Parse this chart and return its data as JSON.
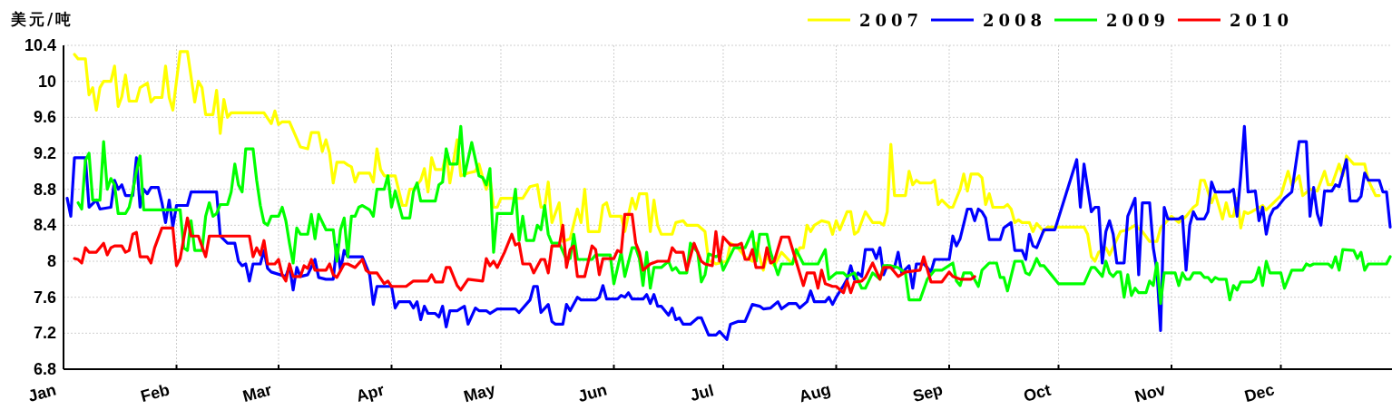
{
  "chart_data": {
    "type": "line",
    "ylabel": "美元/吨",
    "xlim": [
      "--01-01",
      "--12-31"
    ],
    "ylim": [
      6.8,
      10.4
    ],
    "xticks": [
      {
        "value": "--01-01",
        "label": "Jan"
      },
      {
        "value": "--02-01",
        "label": "Feb"
      },
      {
        "value": "--03-01",
        "label": "Mar"
      },
      {
        "value": "--04-01",
        "label": "Apr"
      },
      {
        "value": "--05-01",
        "label": "May"
      },
      {
        "value": "--06-01",
        "label": "Jun"
      },
      {
        "value": "--07-01",
        "label": "Jul"
      },
      {
        "value": "--08-01",
        "label": "Aug"
      },
      {
        "value": "--09-01",
        "label": "Sep"
      },
      {
        "value": "--10-01",
        "label": "Oct"
      },
      {
        "value": "--11-01",
        "label": "Nov"
      },
      {
        "value": "--12-01",
        "label": "Dec"
      }
    ],
    "yticks": [
      6.8,
      7.2,
      7.6,
      8,
      8.4,
      8.8,
      9.2,
      9.6,
      10,
      10.4
    ],
    "grid": true,
    "legend": "top right",
    "series": [
      {
        "name": "2007",
        "color": "#ffff00",
        "x": [
          "--01-04",
          "--01-05",
          "--01-07",
          "--01-08",
          "--01-09",
          "--01-10",
          "--01-11",
          "--01-12",
          "--01-14",
          "--01-15",
          "--01-16",
          "--01-17",
          "--01-18",
          "--01-19",
          "--01-21",
          "--01-22",
          "--01-24",
          "--01-25",
          "--01-26",
          "--01-28",
          "--01-29",
          "--01-30",
          "--01-31",
          "--02-02",
          "--02-04",
          "--02-06",
          "--02-07",
          "--02-08",
          "--02-09",
          "--02-11",
          "--02-12",
          "--02-13",
          "--02-14",
          "--02-15",
          "--02-16",
          "--02-25",
          "--02-27",
          "--02-28",
          "--03-01",
          "--03-02",
          "--03-04",
          "--03-07",
          "--03-09",
          "--03-10",
          "--03-12",
          "--03-13",
          "--03-14",
          "--03-15",
          "--03-16",
          "--03-17",
          "--03-19",
          "--03-20",
          "--03-21",
          "--03-22",
          "--03-23",
          "--03-26",
          "--03-27",
          "--03-28",
          "--03-29",
          "--03-30",
          "--04-02",
          "--04-04",
          "--04-05",
          "--04-06",
          "--04-07",
          "--04-09",
          "--04-10",
          "--04-11",
          "--04-12",
          "--04-13",
          "--04-15",
          "--04-16",
          "--04-17",
          "--04-19",
          "--04-20",
          "--04-22",
          "--04-24",
          "--04-25",
          "--04-26",
          "--04-27",
          "--04-28",
          "--04-29",
          "--04-30",
          "--05-01",
          "--05-07",
          "--05-09",
          "--05-11",
          "--05-12",
          "--05-13",
          "--05-14",
          "--05-15",
          "--05-17",
          "--05-18",
          "--05-20",
          "--05-22",
          "--05-23",
          "--05-24",
          "--05-25",
          "--05-28",
          "--05-29",
          "--05-30",
          "--05-31",
          "--06-03",
          "--06-04",
          "--06-06",
          "--06-07",
          "--06-08",
          "--06-10",
          "--06-11",
          "--06-12",
          "--06-13",
          "--06-14",
          "--06-17",
          "--06-18",
          "--06-20",
          "--06-21",
          "--06-24",
          "--06-26",
          "--06-27",
          "--06-28",
          "--06-29",
          "--07-02",
          "--07-03",
          "--07-05",
          "--07-07",
          "--07-09",
          "--07-10",
          "--07-12",
          "--07-13",
          "--07-15",
          "--07-17",
          "--07-20",
          "--07-22",
          "--07-23",
          "--07-24",
          "--07-25",
          "--07-26",
          "--07-28",
          "--07-30",
          "--07-31",
          "--08-01",
          "--08-02",
          "--08-04",
          "--08-05",
          "--08-06",
          "--08-07",
          "--08-09",
          "--08-11",
          "--08-13",
          "--08-14",
          "--08-15",
          "--08-16",
          "--08-17",
          "--08-20",
          "--08-21",
          "--08-22",
          "--08-23",
          "--08-24",
          "--08-27",
          "--08-28",
          "--08-29",
          "--08-30",
          "--09-01",
          "--09-02",
          "--09-04",
          "--09-05",
          "--09-06",
          "--09-07",
          "--09-09",
          "--09-10",
          "--09-11",
          "--09-12",
          "--09-13",
          "--09-16",
          "--09-17",
          "--09-18",
          "--09-19",
          "--09-20",
          "--09-21",
          "--09-23",
          "--09-24",
          "--09-25",
          "--09-27",
          "--09-28",
          "--10-08",
          "--10-09",
          "--10-10",
          "--10-11",
          "--10-12",
          "--10-14",
          "--10-15",
          "--10-18",
          "--10-20",
          "--10-22",
          "--10-24",
          "--10-26",
          "--10-28",
          "--10-29",
          "--11-01",
          "--11-03",
          "--11-05",
          "--11-07",
          "--11-08",
          "--11-09",
          "--11-10",
          "--11-12",
          "--11-13",
          "--11-15",
          "--11-16",
          "--11-17",
          "--11-18",
          "--11-19",
          "--11-20",
          "--11-21",
          "--11-22",
          "--11-23",
          "--11-26",
          "--11-27",
          "--11-29",
          "--12-01",
          "--12-03",
          "--12-04",
          "--12-06",
          "--12-07",
          "--12-09",
          "--12-11",
          "--12-13",
          "--12-14",
          "--12-15",
          "--12-17",
          "--12-18",
          "--12-19",
          "--12-21",
          "--12-24",
          "--12-25",
          "--12-27",
          "--12-28"
        ],
        "values": [
          10.3,
          10.25,
          10.25,
          9.85,
          9.93,
          9.68,
          9.93,
          10.0,
          10.0,
          10.17,
          9.72,
          9.83,
          10.07,
          9.78,
          9.78,
          9.93,
          9.98,
          9.77,
          9.82,
          9.82,
          10.17,
          9.82,
          9.68,
          10.33,
          10.33,
          9.77,
          10.0,
          9.93,
          9.63,
          9.63,
          9.9,
          9.42,
          9.8,
          9.6,
          9.65,
          9.65,
          9.53,
          9.67,
          9.52,
          9.55,
          9.55,
          9.27,
          9.25,
          9.43,
          9.43,
          9.22,
          9.35,
          9.2,
          8.87,
          9.1,
          9.1,
          9.07,
          9.05,
          8.88,
          8.98,
          8.98,
          8.88,
          9.25,
          9.02,
          8.95,
          8.95,
          8.62,
          8.62,
          8.8,
          8.8,
          8.9,
          9.03,
          8.77,
          9.15,
          9.02,
          9.02,
          9.2,
          8.87,
          9.35,
          8.95,
          8.98,
          9.0,
          9.08,
          8.93,
          8.8,
          8.93,
          8.6,
          8.6,
          8.7,
          8.7,
          8.83,
          8.85,
          8.6,
          8.6,
          8.88,
          8.43,
          8.65,
          8.22,
          8.25,
          8.58,
          8.43,
          8.8,
          8.33,
          8.33,
          8.62,
          8.65,
          8.5,
          8.5,
          8.33,
          8.7,
          8.58,
          8.75,
          8.75,
          8.33,
          8.68,
          8.4,
          8.3,
          8.3,
          8.43,
          8.45,
          8.4,
          8.4,
          8.33,
          8.0,
          8.0,
          7.97,
          8.0,
          8.2,
          8.15,
          8.05,
          8.0,
          8.2,
          7.9,
          8.05,
          7.95,
          8.1,
          7.97,
          8.15,
          8.15,
          8.4,
          8.33,
          8.4,
          8.45,
          8.43,
          8.3,
          8.45,
          8.35,
          8.55,
          8.55,
          8.3,
          8.33,
          8.55,
          8.43,
          8.43,
          8.4,
          8.55,
          9.3,
          8.73,
          8.73,
          9.0,
          8.85,
          8.9,
          8.87,
          8.87,
          8.9,
          8.63,
          8.68,
          8.6,
          8.6,
          8.8,
          8.97,
          8.78,
          8.97,
          8.97,
          8.93,
          8.63,
          8.75,
          8.6,
          8.6,
          8.63,
          8.58,
          8.43,
          8.46,
          8.43,
          8.43,
          8.33,
          8.42,
          8.33,
          8.38,
          8.38,
          8.3,
          8.05,
          8.0,
          8.1,
          8.15,
          8.07,
          8.33,
          8.35,
          8.4,
          8.33,
          8.22,
          8.22,
          8.37,
          8.5,
          8.43,
          8.5,
          8.6,
          8.63,
          8.9,
          8.9,
          8.65,
          8.75,
          8.47,
          8.65,
          8.5,
          8.5,
          8.7,
          8.37,
          8.55,
          8.53,
          8.55,
          8.62,
          8.57,
          8.65,
          8.73,
          9.0,
          8.85,
          8.95,
          8.73,
          8.8,
          8.78,
          9.0,
          8.85,
          8.85,
          9.08,
          8.95,
          9.17,
          9.08,
          9.08,
          8.9,
          8.73,
          8.73
        ]
      },
      {
        "name": "2008",
        "color": "#0000ff",
        "x": [
          "--01-02",
          "--01-03",
          "--01-04",
          "--01-07",
          "--01-08",
          "--01-10",
          "--01-11",
          "--01-14",
          "--01-15",
          "--01-16",
          "--01-17",
          "--01-18",
          "--01-20",
          "--01-21",
          "--01-22",
          "--01-23",
          "--01-24",
          "--01-25",
          "--01-27",
          "--01-28",
          "--01-29",
          "--01-30",
          "--01-31",
          "--02-01",
          "--02-04",
          "--02-05",
          "--02-12",
          "--02-13",
          "--02-15",
          "--02-17",
          "--02-18",
          "--02-19",
          "--02-20",
          "--02-21",
          "--02-22",
          "--02-24",
          "--02-25",
          "--02-26",
          "--02-27",
          "--03-03",
          "--03-04",
          "--03-05",
          "--03-06",
          "--03-07",
          "--03-09",
          "--03-11",
          "--03-12",
          "--03-14",
          "--03-16",
          "--03-17",
          "--03-18",
          "--03-19",
          "--03-20",
          "--03-24",
          "--03-26",
          "--03-27",
          "--03-28",
          "--04-01",
          "--04-02",
          "--04-03",
          "--04-06",
          "--04-07",
          "--04-08",
          "--04-09",
          "--04-10",
          "--04-11",
          "--04-13",
          "--04-14",
          "--04-15",
          "--04-16",
          "--04-17",
          "--04-19",
          "--04-21",
          "--04-22",
          "--04-24",
          "--04-25",
          "--04-27",
          "--04-28",
          "--04-30",
          "--05-05",
          "--05-06",
          "--05-09",
          "--05-10",
          "--05-11",
          "--05-12",
          "--05-14",
          "--05-15",
          "--05-16",
          "--05-18",
          "--05-19",
          "--05-20",
          "--05-22",
          "--05-23",
          "--05-27",
          "--05-28",
          "--05-29",
          "--05-30",
          "--06-02",
          "--06-03",
          "--06-04",
          "--06-05",
          "--06-06",
          "--06-09",
          "--06-10",
          "--06-11",
          "--06-12",
          "--06-13",
          "--06-14",
          "--06-16",
          "--06-17",
          "--06-18",
          "--06-19",
          "--06-20",
          "--06-22",
          "--06-24",
          "--06-25",
          "--06-27",
          "--06-29",
          "--06-30",
          "--07-02",
          "--07-03",
          "--07-05",
          "--07-07",
          "--07-09",
          "--07-11",
          "--07-12",
          "--07-14",
          "--07-16",
          "--07-17",
          "--07-19",
          "--07-21",
          "--07-22",
          "--07-24",
          "--07-25",
          "--07-26",
          "--07-29",
          "--07-30",
          "--07-31",
          "--08-01",
          "--08-03",
          "--08-04",
          "--08-05",
          "--08-06",
          "--08-07",
          "--08-08",
          "--08-09",
          "--08-11",
          "--08-12",
          "--08-13",
          "--08-14",
          "--08-15",
          "--08-17",
          "--08-18",
          "--08-19",
          "--08-21",
          "--08-22",
          "--08-23",
          "--08-25",
          "--08-26",
          "--08-27",
          "--08-28",
          "--09-01",
          "--09-02",
          "--09-03",
          "--09-04",
          "--09-06",
          "--09-07",
          "--09-08",
          "--09-09",
          "--09-10",
          "--09-11",
          "--09-12",
          "--09-15",
          "--09-16",
          "--09-18",
          "--09-19",
          "--09-21",
          "--09-22",
          "--09-23",
          "--09-24",
          "--09-25",
          "--09-27",
          "--09-30",
          "--10-06",
          "--10-07",
          "--10-08",
          "--10-10",
          "--10-11",
          "--10-12",
          "--10-13",
          "--10-14",
          "--10-15",
          "--10-16",
          "--10-17",
          "--10-19",
          "--10-20",
          "--10-22",
          "--10-23",
          "--10-24",
          "--10-26",
          "--10-27",
          "--10-28",
          "--10-29",
          "--10-30",
          "--10-31",
          "--11-03",
          "--11-04",
          "--11-05",
          "--11-06",
          "--11-07",
          "--11-08",
          "--11-10",
          "--11-11",
          "--11-12",
          "--11-13",
          "--11-17",
          "--11-18",
          "--11-19",
          "--11-20",
          "--11-21",
          "--11-22",
          "--11-24",
          "--11-25",
          "--11-26",
          "--11-27",
          "--11-28",
          "--11-29",
          "--11-30",
          "--12-02",
          "--12-04",
          "--12-06",
          "--12-08",
          "--12-09",
          "--12-10",
          "--12-11",
          "--12-12",
          "--12-13",
          "--12-15",
          "--12-16",
          "--12-17",
          "--12-19",
          "--12-20",
          "--12-22",
          "--12-23",
          "--12-24",
          "--12-25",
          "--12-28",
          "--12-29",
          "--12-30",
          "--12-31"
        ],
        "values": [
          8.7,
          8.5,
          9.15,
          9.15,
          8.6,
          8.68,
          8.58,
          8.6,
          8.9,
          8.8,
          8.85,
          8.73,
          8.73,
          9.15,
          8.6,
          8.8,
          8.75,
          8.82,
          8.82,
          8.65,
          8.43,
          8.68,
          8.38,
          8.62,
          8.62,
          8.77,
          8.77,
          8.28,
          8.2,
          8.2,
          8.0,
          7.95,
          7.97,
          7.78,
          7.97,
          7.97,
          8.12,
          7.92,
          7.88,
          7.83,
          7.95,
          7.68,
          7.93,
          7.83,
          7.85,
          8.02,
          7.82,
          7.8,
          7.8,
          8.18,
          7.9,
          8.12,
          8.05,
          8.05,
          7.85,
          7.52,
          7.72,
          7.72,
          7.48,
          7.55,
          7.55,
          7.48,
          7.55,
          7.35,
          7.5,
          7.42,
          7.42,
          7.38,
          7.5,
          7.27,
          7.45,
          7.45,
          7.5,
          7.3,
          7.48,
          7.45,
          7.45,
          7.42,
          7.47,
          7.47,
          7.43,
          7.57,
          7.72,
          7.72,
          7.43,
          7.52,
          7.33,
          7.3,
          7.3,
          7.52,
          7.45,
          7.6,
          7.57,
          7.57,
          7.6,
          7.73,
          7.58,
          7.58,
          7.62,
          7.6,
          7.65,
          7.58,
          7.58,
          7.63,
          7.53,
          7.63,
          7.5,
          7.5,
          7.4,
          7.48,
          7.35,
          7.37,
          7.3,
          7.3,
          7.37,
          7.37,
          7.18,
          7.18,
          7.22,
          7.13,
          7.3,
          7.33,
          7.33,
          7.52,
          7.5,
          7.47,
          7.48,
          7.55,
          7.47,
          7.53,
          7.53,
          7.48,
          7.55,
          7.67,
          7.55,
          7.55,
          7.6,
          7.52,
          7.6,
          7.73,
          7.8,
          7.95,
          7.8,
          7.87,
          7.83,
          8.13,
          8.13,
          8.03,
          8.15,
          7.85,
          7.95,
          7.93,
          8.1,
          7.87,
          7.95,
          7.7,
          7.97,
          7.97,
          7.93,
          7.88,
          8.02,
          8.02,
          8.28,
          8.17,
          8.25,
          8.58,
          8.58,
          8.45,
          8.58,
          8.55,
          8.48,
          8.24,
          8.24,
          8.37,
          8.43,
          8.12,
          8.12,
          8.02,
          8.3,
          8.17,
          8.15,
          8.35,
          8.35,
          9.13,
          8.6,
          9.08,
          8.55,
          8.6,
          8.6,
          7.98,
          8.33,
          8.45,
          8.3,
          7.98,
          7.98,
          8.5,
          8.7,
          7.85,
          8.65,
          8.65,
          8.15,
          7.9,
          7.23,
          8.6,
          8.47,
          8.47,
          8.5,
          7.9,
          8.4,
          8.55,
          8.47,
          8.47,
          8.55,
          8.88,
          8.77,
          8.77,
          8.8,
          8.5,
          8.95,
          9.5,
          8.77,
          8.78,
          8.45,
          8.6,
          8.3,
          8.5,
          8.58,
          8.6,
          8.7,
          8.77,
          9.33,
          9.33,
          8.5,
          8.82,
          8.53,
          8.4,
          8.78,
          8.78,
          8.85,
          8.83,
          9.13,
          8.67,
          8.67,
          8.72,
          8.98,
          8.9,
          8.9,
          8.77,
          8.77,
          8.38
        ]
      },
      {
        "name": "2009",
        "color": "#00ff00",
        "x": [
          "--01-05",
          "--01-06",
          "--01-07",
          "--01-08",
          "--01-09",
          "--01-11",
          "--01-12",
          "--01-13",
          "--01-14",
          "--01-15",
          "--01-16",
          "--01-18",
          "--01-19",
          "--01-20",
          "--01-21",
          "--01-22",
          "--01-23",
          "--02-02",
          "--02-03",
          "--02-04",
          "--02-05",
          "--02-06",
          "--02-08",
          "--02-09",
          "--02-10",
          "--02-11",
          "--02-12",
          "--02-13",
          "--02-15",
          "--02-16",
          "--02-17",
          "--02-18",
          "--02-19",
          "--02-20",
          "--02-22",
          "--02-23",
          "--02-24",
          "--02-25",
          "--02-26",
          "--02-27",
          "--03-01",
          "--03-02",
          "--03-03",
          "--03-04",
          "--03-05",
          "--03-06",
          "--03-07",
          "--03-09",
          "--03-10",
          "--03-11",
          "--03-12",
          "--03-14",
          "--03-16",
          "--03-17",
          "--03-18",
          "--03-19",
          "--03-20",
          "--03-21",
          "--03-22",
          "--03-23",
          "--03-24",
          "--03-26",
          "--03-27",
          "--03-28",
          "--03-30",
          "--03-31",
          "--04-01",
          "--04-02",
          "--04-04",
          "--04-06",
          "--04-07",
          "--04-08",
          "--04-09",
          "--04-13",
          "--04-14",
          "--04-15",
          "--04-16",
          "--04-17",
          "--04-19",
          "--04-20",
          "--04-21",
          "--04-23",
          "--04-25",
          "--04-26",
          "--04-27",
          "--04-28",
          "--04-29",
          "--04-30",
          "--05-04",
          "--05-05",
          "--05-06",
          "--05-07",
          "--05-08",
          "--05-10",
          "--05-11",
          "--05-12",
          "--05-13",
          "--05-14",
          "--05-15",
          "--05-17",
          "--05-19",
          "--05-20",
          "--05-21",
          "--05-22",
          "--05-26",
          "--05-27",
          "--05-31",
          "--06-01",
          "--06-03",
          "--06-04",
          "--06-06",
          "--06-07",
          "--06-08",
          "--06-09",
          "--06-10",
          "--06-11",
          "--06-12",
          "--06-14",
          "--06-16",
          "--06-17",
          "--06-18",
          "--06-19",
          "--06-21",
          "--06-22",
          "--06-24",
          "--06-25",
          "--06-26",
          "--06-27",
          "--06-29",
          "--06-30",
          "--07-01",
          "--07-04",
          "--07-05",
          "--07-07",
          "--07-09",
          "--07-10",
          "--07-11",
          "--07-13",
          "--07-14",
          "--07-16",
          "--07-17",
          "--07-20",
          "--07-21",
          "--07-23",
          "--07-27",
          "--07-29",
          "--07-30",
          "--08-01",
          "--08-03",
          "--08-04",
          "--08-06",
          "--08-08",
          "--08-09",
          "--08-11",
          "--08-13",
          "--08-14",
          "--08-16",
          "--08-18",
          "--08-20",
          "--08-21",
          "--08-24",
          "--08-26",
          "--08-28",
          "--08-30",
          "--09-02",
          "--09-03",
          "--09-04",
          "--09-05",
          "--09-07",
          "--09-09",
          "--09-10",
          "--09-12",
          "--09-14",
          "--09-15",
          "--09-16",
          "--09-17",
          "--09-19",
          "--09-21",
          "--09-22",
          "--09-23",
          "--09-24",
          "--09-25",
          "--09-26",
          "--09-27",
          "--09-29",
          "--10-01",
          "--10-08",
          "--10-10",
          "--10-11",
          "--10-13",
          "--10-14",
          "--10-15",
          "--10-16",
          "--10-17",
          "--10-18",
          "--10-19",
          "--10-20",
          "--10-21",
          "--10-22",
          "--10-23",
          "--10-25",
          "--10-26",
          "--10-27",
          "--10-28",
          "--10-29",
          "--10-30",
          "--11-02",
          "--11-03",
          "--11-04",
          "--11-05",
          "--11-06",
          "--11-07",
          "--11-09",
          "--11-10",
          "--11-11",
          "--11-12",
          "--11-13",
          "--11-14",
          "--11-16",
          "--11-17",
          "--11-18",
          "--11-19",
          "--11-20",
          "--11-23",
          "--11-24",
          "--11-25",
          "--11-26",
          "--11-27",
          "--11-28",
          "--12-01",
          "--12-02",
          "--12-03",
          "--12-04",
          "--12-07",
          "--12-08",
          "--12-09",
          "--12-10",
          "--12-14",
          "--12-15",
          "--12-16",
          "--12-17",
          "--12-18",
          "--12-21",
          "--12-22",
          "--12-23",
          "--12-24",
          "--12-25",
          "--12-30",
          "--12-31"
        ],
        "values": [
          8.65,
          8.58,
          9.12,
          9.2,
          8.68,
          8.68,
          9.33,
          8.8,
          8.92,
          8.85,
          8.53,
          8.53,
          8.6,
          8.78,
          9.0,
          9.17,
          8.57,
          8.57,
          8.15,
          8.12,
          8.45,
          8.12,
          8.12,
          8.5,
          8.65,
          8.5,
          8.53,
          8.63,
          8.63,
          8.77,
          9.08,
          8.85,
          8.77,
          9.25,
          9.25,
          8.9,
          8.62,
          8.43,
          8.4,
          8.5,
          8.5,
          8.6,
          8.45,
          8.2,
          7.98,
          8.37,
          8.3,
          8.3,
          8.52,
          8.25,
          8.52,
          8.35,
          8.35,
          8.0,
          8.35,
          8.48,
          8.05,
          8.5,
          8.5,
          8.6,
          8.62,
          8.57,
          8.5,
          8.8,
          8.8,
          8.95,
          8.6,
          8.78,
          8.48,
          8.48,
          8.77,
          8.87,
          8.67,
          8.67,
          8.85,
          8.88,
          9.25,
          9.08,
          9.08,
          9.5,
          8.95,
          9.32,
          8.95,
          8.93,
          8.85,
          9.03,
          8.1,
          8.53,
          8.53,
          8.8,
          8.23,
          8.5,
          8.23,
          8.23,
          8.4,
          8.35,
          8.62,
          8.3,
          8.2,
          8.2,
          8.02,
          8.03,
          8.3,
          8.02,
          8.02,
          8.07,
          8.07,
          7.75,
          8.1,
          7.83,
          8.15,
          8.15,
          8.03,
          7.73,
          8.1,
          7.7,
          7.93,
          7.93,
          8.0,
          7.9,
          7.93,
          7.87,
          7.87,
          8.2,
          8.1,
          7.77,
          7.85,
          8.08,
          8.05,
          8.07,
          7.9,
          8.15,
          8.15,
          8.15,
          8.33,
          8.0,
          8.3,
          8.3,
          8.1,
          7.85,
          7.97,
          7.97,
          8.13,
          7.97,
          7.97,
          8.13,
          7.8,
          7.87,
          7.87,
          7.83,
          7.87,
          7.7,
          7.7,
          7.87,
          7.8,
          7.95,
          7.95,
          7.93,
          7.87,
          7.57,
          7.57,
          7.8,
          7.9,
          7.9,
          7.98,
          7.78,
          7.73,
          7.87,
          7.87,
          7.72,
          7.9,
          7.98,
          7.98,
          7.82,
          7.82,
          7.67,
          8.0,
          8.0,
          7.87,
          7.85,
          7.93,
          8.03,
          7.95,
          7.95,
          7.85,
          7.75,
          7.75,
          7.93,
          7.93,
          7.83,
          8.0,
          7.87,
          7.83,
          7.88,
          7.88,
          7.6,
          7.85,
          7.62,
          7.7,
          7.65,
          7.65,
          7.78,
          7.73,
          7.98,
          7.53,
          7.87,
          7.87,
          7.73,
          7.87,
          7.8,
          7.8,
          7.87,
          7.87,
          7.82,
          7.82,
          7.77,
          7.82,
          7.8,
          7.8,
          7.57,
          7.73,
          7.68,
          7.77,
          7.77,
          7.8,
          7.93,
          7.73,
          8.0,
          7.87,
          7.87,
          7.7,
          7.8,
          7.9,
          7.9,
          7.97,
          7.95,
          7.97,
          7.97,
          7.93,
          8.05,
          7.9,
          8.13,
          8.12,
          8.03,
          8.1,
          7.9,
          7.97,
          7.97,
          8.05
        ]
      },
      {
        "name": "2010",
        "color": "#ff0000",
        "x": [
          "--01-04",
          "--01-05",
          "--01-06",
          "--01-07",
          "--01-08",
          "--01-10",
          "--01-12",
          "--01-13",
          "--01-14",
          "--01-15",
          "--01-17",
          "--01-18",
          "--01-19",
          "--01-20",
          "--01-21",
          "--01-22",
          "--01-24",
          "--01-25",
          "--01-26",
          "--01-28",
          "--01-31",
          "--02-01",
          "--02-02",
          "--02-04",
          "--02-05",
          "--02-07",
          "--02-09",
          "--02-10",
          "--02-21",
          "--02-22",
          "--02-23",
          "--02-24",
          "--02-25",
          "--02-26",
          "--02-28",
          "--03-01",
          "--03-02",
          "--03-03",
          "--03-04",
          "--03-05",
          "--03-07",
          "--03-08",
          "--03-09",
          "--03-10",
          "--03-11",
          "--03-14",
          "--03-15",
          "--03-16",
          "--03-17",
          "--03-19",
          "--03-20",
          "--03-22",
          "--03-24",
          "--03-25",
          "--03-26",
          "--03-28",
          "--03-30",
          "--03-31",
          "--04-01",
          "--04-05",
          "--04-07",
          "--04-11",
          "--04-12",
          "--04-13",
          "--04-15",
          "--04-16",
          "--04-17",
          "--04-19",
          "--04-20",
          "--04-22",
          "--04-26",
          "--04-27",
          "--04-28",
          "--04-29",
          "--04-30",
          "--05-02",
          "--05-04",
          "--05-05",
          "--05-06",
          "--05-07",
          "--05-09",
          "--05-10",
          "--05-12",
          "--05-13",
          "--05-14",
          "--05-15",
          "--05-17",
          "--05-18",
          "--05-19",
          "--05-20",
          "--05-21",
          "--05-22",
          "--05-24",
          "--05-26",
          "--05-27",
          "--05-28",
          "--05-29",
          "--06-01",
          "--06-02",
          "--06-03",
          "--06-04",
          "--06-06",
          "--06-07",
          "--06-08",
          "--06-09",
          "--06-11",
          "--06-13",
          "--06-16",
          "--06-17",
          "--06-18",
          "--06-20",
          "--06-21",
          "--06-23",
          "--06-25",
          "--06-26",
          "--06-28",
          "--06-29",
          "--06-30",
          "--07-01",
          "--07-03",
          "--07-05",
          "--07-06",
          "--07-07",
          "--07-08",
          "--07-09",
          "--07-10",
          "--07-12",
          "--07-13",
          "--07-14",
          "--07-15",
          "--07-17",
          "--07-19",
          "--07-21",
          "--07-23",
          "--07-24",
          "--07-26",
          "--07-27",
          "--07-28",
          "--07-29",
          "--07-31",
          "--08-01",
          "--08-03",
          "--08-04",
          "--08-05",
          "--08-06",
          "--08-08",
          "--08-09",
          "--08-11",
          "--08-13",
          "--08-14",
          "--08-16",
          "--08-18",
          "--08-20",
          "--08-24",
          "--08-25",
          "--08-27",
          "--08-30",
          "--09-01",
          "--09-02",
          "--09-04",
          "--09-07",
          "--09-08"
        ],
        "values": [
          8.03,
          8.02,
          7.98,
          8.15,
          8.1,
          8.1,
          8.2,
          8.07,
          8.15,
          8.17,
          8.17,
          8.1,
          8.12,
          8.3,
          8.32,
          8.05,
          8.05,
          7.98,
          8.15,
          8.37,
          8.37,
          7.95,
          8.03,
          8.48,
          8.28,
          8.28,
          8.05,
          8.28,
          8.28,
          8.05,
          8.15,
          8.07,
          8.23,
          7.97,
          7.97,
          8.02,
          7.85,
          7.78,
          7.97,
          7.83,
          7.83,
          7.95,
          7.92,
          8.02,
          7.9,
          7.9,
          7.97,
          7.85,
          7.82,
          7.97,
          7.97,
          7.93,
          8.02,
          7.9,
          7.87,
          7.87,
          7.75,
          7.78,
          7.72,
          7.72,
          7.78,
          7.78,
          7.85,
          7.77,
          7.77,
          7.93,
          7.93,
          7.73,
          7.68,
          7.8,
          7.78,
          8.03,
          7.95,
          8.0,
          7.93,
          8.1,
          8.3,
          8.18,
          8.2,
          7.97,
          7.97,
          7.87,
          8.02,
          8.02,
          7.87,
          8.17,
          8.17,
          8.4,
          7.93,
          8.13,
          8.17,
          7.83,
          7.83,
          8.17,
          8.13,
          7.85,
          8.03,
          8.03,
          8.12,
          8.1,
          8.52,
          8.52,
          8.2,
          8.1,
          7.9,
          7.97,
          8.0,
          8.0,
          8.15,
          8.1,
          8.1,
          7.9,
          8.2,
          8.0,
          7.97,
          7.95,
          8.33,
          8.0,
          8.27,
          8.18,
          8.18,
          8.2,
          8.02,
          8.02,
          8.13,
          7.93,
          7.93,
          8.15,
          7.98,
          8.0,
          8.27,
          8.27,
          8.0,
          7.73,
          7.87,
          7.87,
          7.7,
          7.9,
          7.75,
          7.72,
          7.72,
          7.65,
          7.78,
          7.65,
          7.77,
          7.78,
          7.82,
          7.98,
          7.8,
          7.93,
          7.93,
          7.83,
          7.88,
          7.9,
          8.05,
          7.77,
          7.77,
          7.88,
          7.83,
          7.8,
          7.8,
          7.83
        ]
      }
    ]
  }
}
